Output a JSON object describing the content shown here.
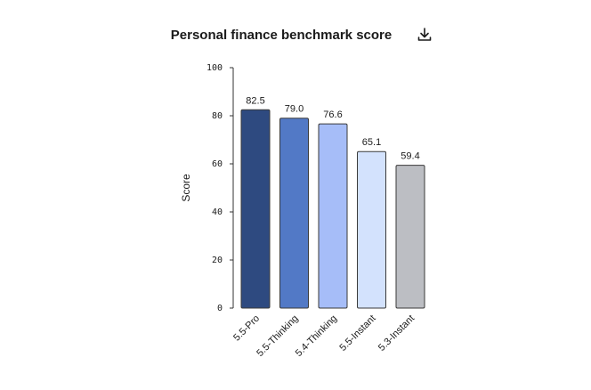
{
  "download_icon": "download-icon",
  "chart_data": {
    "type": "bar",
    "title": "Personal finance benchmark score",
    "ylabel": "Score",
    "xlabel": "",
    "ylim": [
      0,
      100
    ],
    "yticks": [
      "0",
      "20",
      "40",
      "60",
      "80",
      "100"
    ],
    "categories": [
      "5.5-Pro",
      "5.5-Thinking",
      "5.4-Thinking",
      "5.5-Instant",
      "5.3-Instant"
    ],
    "values": [
      82.5,
      79.0,
      76.6,
      65.1,
      59.4
    ],
    "value_labels": [
      "82.5",
      "79.0",
      "76.6",
      "65.1",
      "59.4"
    ],
    "colors": [
      "#2e4a80",
      "#5279c6",
      "#a6bdf8",
      "#d3e2fd",
      "#bcbec3"
    ],
    "grid": false,
    "legend": "none"
  }
}
